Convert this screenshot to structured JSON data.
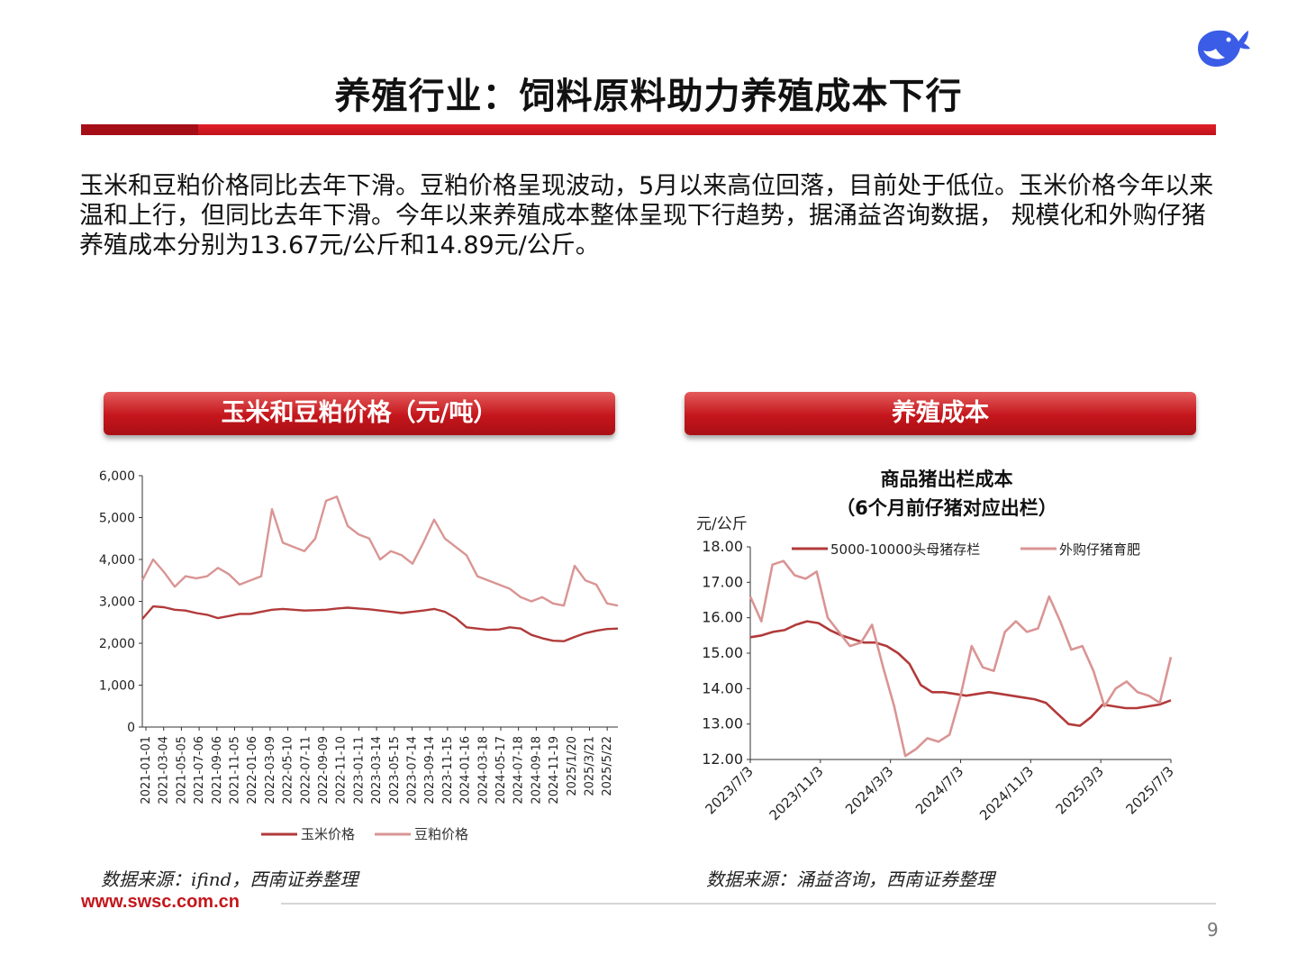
{
  "page": {
    "title": "养殖行业：饲料原料助力养殖成本下行",
    "intro": "玉米和豆粕价格同比去年下滑。豆粕价格呈现波动，5月以来高位回落，目前处于低位。玉米价格今年以来温和上行，但同比去年下滑。今年以来养殖成本整体呈现下行趋势，据涌益咨询数据， 规模化和外购仔猪养殖成本分别为13.67元/公斤和14.89元/公斤。",
    "left_header": "玉米和豆粕价格（元/吨）",
    "right_header": "养殖成本",
    "left_source": "数据来源：ifind，西南证券整理",
    "right_source": "数据来源：涌益咨询，西南证券整理",
    "website": "www.swsc.com.cn",
    "page_number": "9",
    "logo_icon": "whale-logo-icon"
  },
  "colors": {
    "accent_red": "#c4161c",
    "series_dark": "#b23a3a",
    "series_light": "#d99594"
  },
  "chart_data": [
    {
      "type": "line",
      "title": "",
      "ylabel": "",
      "ylim": [
        0,
        6000
      ],
      "yticks": [
        0,
        1000,
        2000,
        3000,
        4000,
        5000,
        6000
      ],
      "ytick_labels": [
        "0",
        "1,000",
        "2,000",
        "3,000",
        "4,000",
        "5,000",
        "6,000"
      ],
      "xtick_labels": [
        "2021-01-01",
        "2021-03-04",
        "2021-05-05",
        "2021-07-06",
        "2021-09-06",
        "2021-11-05",
        "2022-01-06",
        "2022-03-09",
        "2022-05-10",
        "2022-07-11",
        "2022-09-09",
        "2022-11-10",
        "2023-01-11",
        "2023-03-14",
        "2023-05-15",
        "2023-07-14",
        "2023-09-14",
        "2023-11-15",
        "2024-01-16",
        "2024-03-18",
        "2024-05-17",
        "2024-07-18",
        "2024-09-18",
        "2024-11-19",
        "2025/1/20",
        "2025/3/21",
        "2025/5/22"
      ],
      "legend_position": "bottom",
      "series": [
        {
          "name": "玉米价格",
          "color": "#b23a3a",
          "values": [
            2580,
            2880,
            2860,
            2800,
            2780,
            2720,
            2680,
            2600,
            2650,
            2700,
            2700,
            2750,
            2800,
            2820,
            2800,
            2780,
            2790,
            2800,
            2830,
            2850,
            2830,
            2810,
            2780,
            2750,
            2720,
            2750,
            2780,
            2820,
            2750,
            2600,
            2380,
            2350,
            2320,
            2330,
            2380,
            2350,
            2200,
            2120,
            2060,
            2050,
            2150,
            2240,
            2300,
            2340,
            2350
          ]
        },
        {
          "name": "豆粕价格",
          "color": "#d99594",
          "values": [
            3500,
            4000,
            3700,
            3350,
            3600,
            3550,
            3600,
            3800,
            3650,
            3400,
            3500,
            3600,
            5200,
            4400,
            4300,
            4200,
            4500,
            5400,
            5500,
            4800,
            4600,
            4500,
            4000,
            4200,
            4100,
            3900,
            4400,
            4950,
            4500,
            4300,
            4100,
            3600,
            3500,
            3400,
            3300,
            3100,
            3000,
            3100,
            2950,
            2900,
            3850,
            3500,
            3400,
            2950,
            2900
          ]
        }
      ]
    },
    {
      "type": "line",
      "title": "商品猪出栏成本",
      "subtitle": "（6个月前仔猪对应出栏）",
      "ylabel": "元/公斤",
      "ylim": [
        12,
        18
      ],
      "yticks": [
        12,
        13,
        14,
        15,
        16,
        17,
        18
      ],
      "ytick_labels": [
        "12.00",
        "13.00",
        "14.00",
        "15.00",
        "16.00",
        "17.00",
        "18.00"
      ],
      "xtick_labels": [
        "2023/7/3",
        "2023/11/3",
        "2024/3/3",
        "2024/7/3",
        "2024/11/3",
        "2025/3/3",
        "2025/7/3"
      ],
      "legend_position": "top",
      "series": [
        {
          "name": "5000-10000头母猪存栏",
          "color": "#b23a3a",
          "values": [
            15.45,
            15.5,
            15.6,
            15.65,
            15.8,
            15.9,
            15.85,
            15.65,
            15.5,
            15.4,
            15.3,
            15.3,
            15.2,
            15.0,
            14.7,
            14.1,
            13.9,
            13.9,
            13.85,
            13.8,
            13.85,
            13.9,
            13.85,
            13.8,
            13.75,
            13.7,
            13.6,
            13.3,
            13.0,
            12.95,
            13.2,
            13.55,
            13.5,
            13.45,
            13.45,
            13.5,
            13.55,
            13.67
          ]
        },
        {
          "name": "外购仔猪育肥",
          "color": "#d99594",
          "values": [
            16.6,
            15.9,
            17.5,
            17.6,
            17.2,
            17.1,
            17.3,
            16.0,
            15.6,
            15.2,
            15.3,
            15.8,
            14.6,
            13.5,
            12.1,
            12.3,
            12.6,
            12.5,
            12.7,
            13.8,
            15.2,
            14.6,
            14.5,
            15.6,
            15.9,
            15.6,
            15.7,
            16.6,
            15.9,
            15.1,
            15.2,
            14.5,
            13.5,
            14.0,
            14.2,
            13.9,
            13.8,
            13.6,
            14.89
          ]
        }
      ]
    }
  ]
}
